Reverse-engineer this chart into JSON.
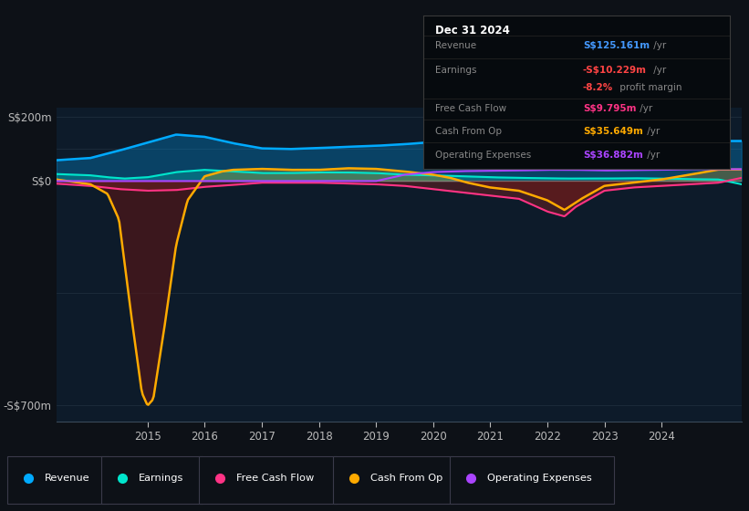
{
  "bg_color": "#0d1117",
  "plot_bg_color": "#0d1b2a",
  "revenue_color": "#00aaff",
  "earnings_color": "#00e5cc",
  "fcf_color": "#ff3385",
  "cfo_color": "#ffaa00",
  "opex_color": "#aa44ff",
  "info_box": {
    "date": "Dec 31 2024",
    "rows": [
      {
        "label": "Revenue",
        "value": "S$125.161m",
        "suffix": " /yr",
        "vcolor": "#4499ff"
      },
      {
        "label": "Earnings",
        "value": "-S$10.229m",
        "suffix": " /yr",
        "vcolor": "#ff4444"
      },
      {
        "label": "",
        "value": "-8.2%",
        "suffix": " profit margin",
        "vcolor": "#ff4444"
      },
      {
        "label": "Free Cash Flow",
        "value": "S$9.795m",
        "suffix": " /yr",
        "vcolor": "#ff3385"
      },
      {
        "label": "Cash From Op",
        "value": "S$35.649m",
        "suffix": " /yr",
        "vcolor": "#ffaa00"
      },
      {
        "label": "Operating Expenses",
        "value": "S$36.882m",
        "suffix": " /yr",
        "vcolor": "#aa44ff"
      }
    ]
  },
  "legend": [
    {
      "label": "Revenue",
      "color": "#00aaff"
    },
    {
      "label": "Earnings",
      "color": "#00e5cc"
    },
    {
      "label": "Free Cash Flow",
      "color": "#ff3385"
    },
    {
      "label": "Cash From Op",
      "color": "#ffaa00"
    },
    {
      "label": "Operating Expenses",
      "color": "#aa44ff"
    }
  ],
  "xlim": [
    2013.4,
    2025.4
  ],
  "ylim": [
    -750,
    230
  ],
  "yticks": [
    200,
    0,
    -700
  ],
  "ytick_labels": [
    "S$200m",
    "S$0",
    "-S$700m"
  ],
  "xticks": [
    2015,
    2016,
    2017,
    2018,
    2019,
    2020,
    2021,
    2022,
    2023,
    2024
  ]
}
